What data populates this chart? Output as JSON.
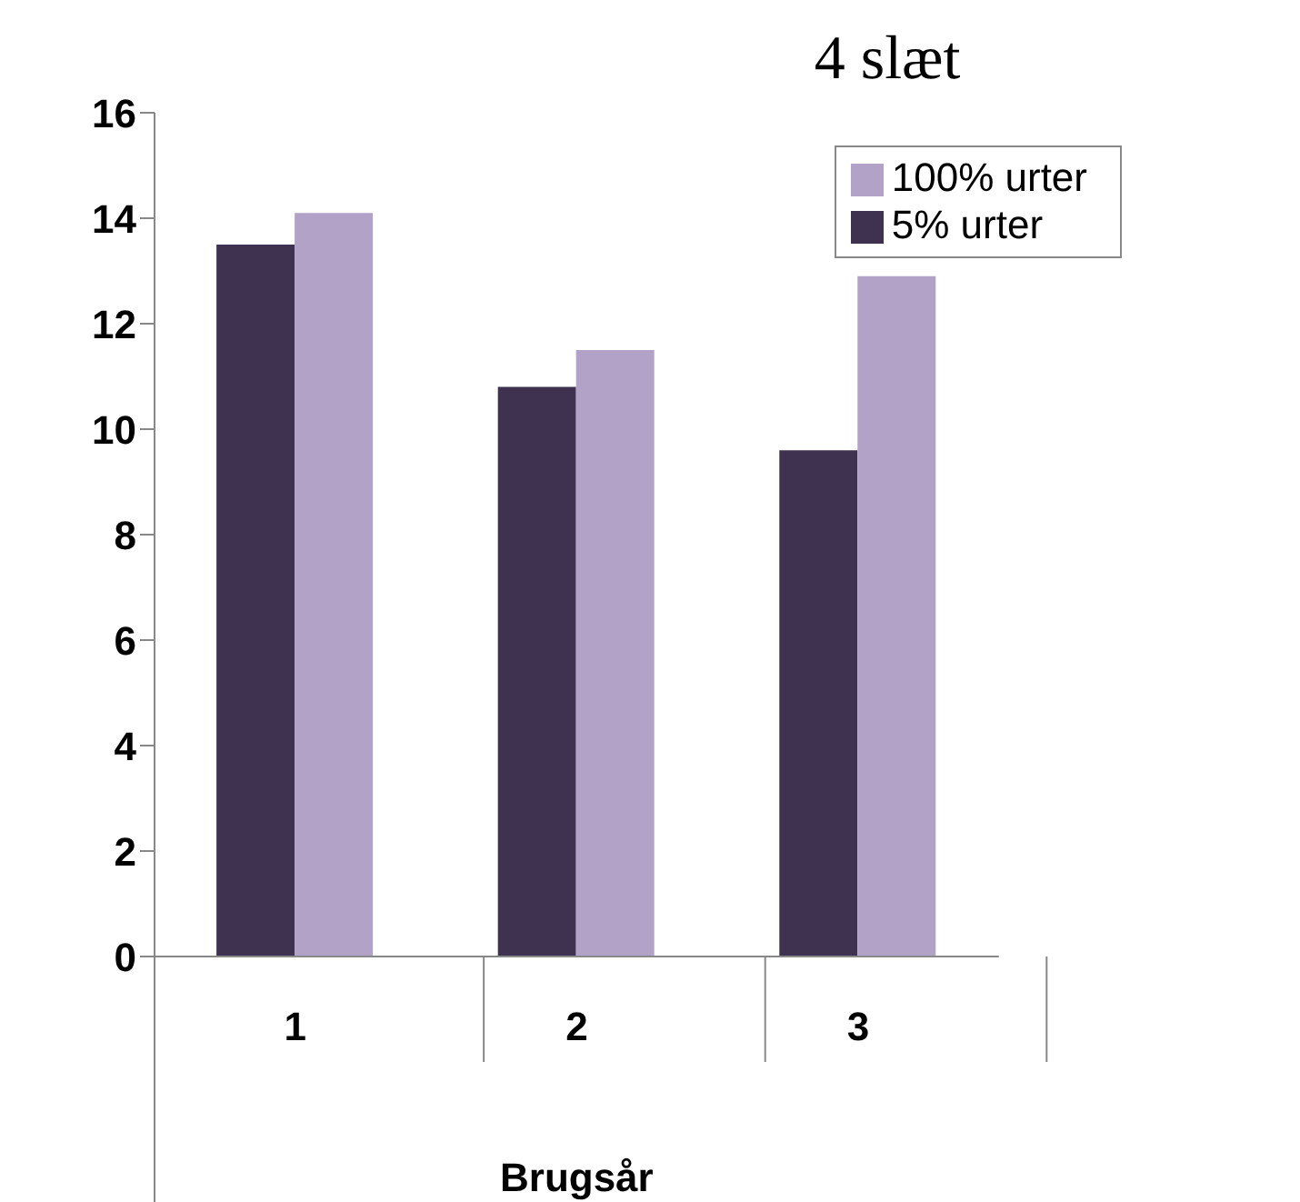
{
  "chart_data": {
    "type": "bar",
    "title": "4 slæt",
    "xlabel": "Brugsår",
    "categories": [
      "1",
      "2",
      "3"
    ],
    "series": [
      {
        "name": "5% urter",
        "color": "#3f3150",
        "values": [
          13.5,
          10.8,
          9.6
        ]
      },
      {
        "name": "100% urter",
        "color": "#b2a2c7",
        "values": [
          14.1,
          11.5,
          12.9
        ]
      }
    ],
    "ylim": [
      0,
      16
    ],
    "yticks": [
      0,
      2,
      4,
      6,
      8,
      10,
      12,
      14,
      16
    ],
    "grid": false,
    "legend": "top right"
  }
}
